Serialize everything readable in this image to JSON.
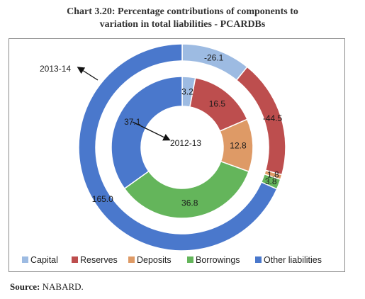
{
  "chart_data": {
    "type": "donut",
    "title_line1": "Chart 3.20: Percentage contributions of components to",
    "title_line2": "variation in total liabilities - PCARDBs",
    "categories": [
      "Capital",
      "Reserves",
      "Deposits",
      "Borrowings",
      "Other liabilities"
    ],
    "colors": [
      "#9dbbe2",
      "#bd4e4e",
      "#de9a66",
      "#64b55b",
      "#4a78cc"
    ],
    "rings": [
      {
        "name": "2013-14",
        "position": "outer",
        "values": [
          -26.1,
          -44.5,
          1.8,
          3.8,
          165.0
        ],
        "labels": [
          "-26.1",
          "-44.5",
          "1.8",
          "3.8",
          "165.0"
        ]
      },
      {
        "name": "2012-13",
        "position": "inner",
        "values": [
          3.2,
          16.5,
          12.8,
          36.8,
          37.1
        ],
        "labels": [
          "3.2",
          "16.5",
          "12.8",
          "36.8",
          "37.1"
        ]
      }
    ],
    "legend_position": "bottom"
  },
  "source": {
    "label": "Source:",
    "text": "NABARD."
  }
}
